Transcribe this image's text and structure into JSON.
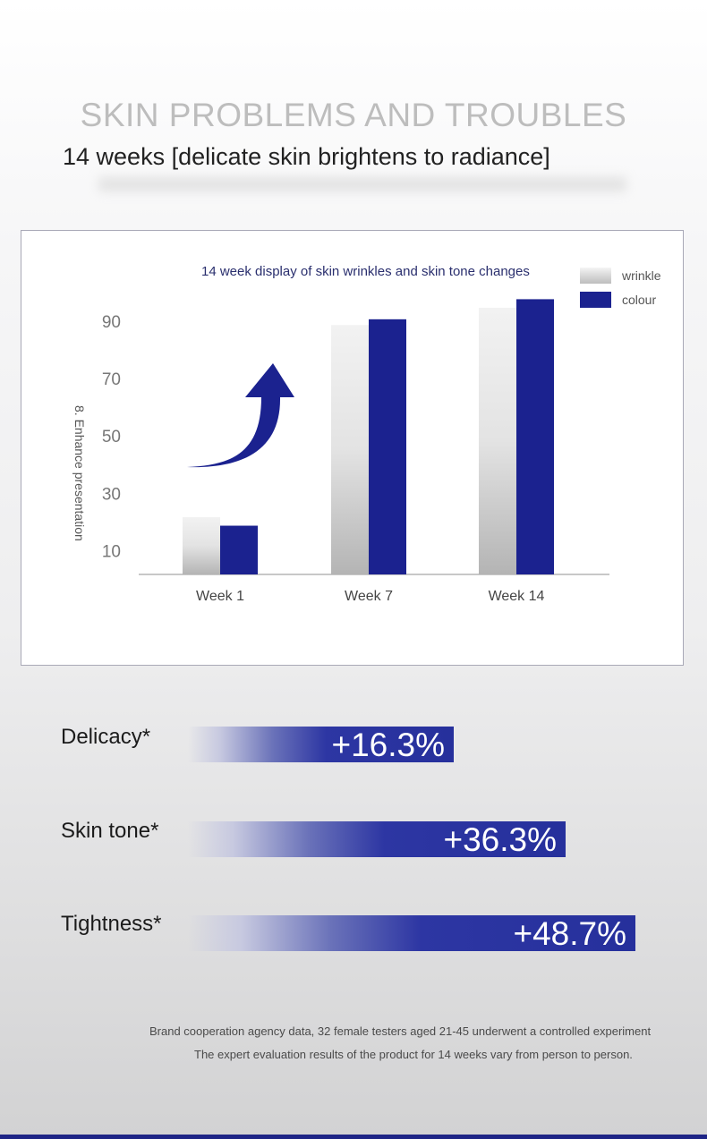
{
  "header": {
    "title": "SKIN PROBLEMS AND TROUBLES",
    "subtitle": "14 weeks [delicate skin brightens to radiance]"
  },
  "chart_data": {
    "type": "bar",
    "title": "14 week display of skin wrinkles and skin tone changes",
    "ylabel": "8. Enhance presentation",
    "xlabel": "",
    "categories": [
      "Week 1",
      "Week 7",
      "Week 14"
    ],
    "series": [
      {
        "name": "wrinkle",
        "values": [
          22,
          89,
          95
        ],
        "color": "#cfcfcf"
      },
      {
        "name": "colour",
        "values": [
          19,
          91,
          98
        ],
        "color": "#1b228f"
      }
    ],
    "yticks": [
      10,
      30,
      50,
      70,
      90
    ],
    "ylim": [
      2,
      100
    ],
    "grid": false,
    "legend": "top-right",
    "annotation": "upward-arrow"
  },
  "stats": [
    {
      "label": "Delicacy*",
      "value": "+16.3%",
      "percent": 16.3
    },
    {
      "label": "Skin tone*",
      "value": "+36.3%",
      "percent": 36.3
    },
    {
      "label": "Tightness*",
      "value": "+48.7%",
      "percent": 48.7
    }
  ],
  "notes": {
    "line1": "Brand cooperation agency data, 32 female testers aged 21-45 underwent a controlled experiment",
    "line2": "The expert evaluation results of the product for 14 weeks vary from person to person."
  },
  "colors": {
    "accent": "#1b228f",
    "heading": "#bdbdbd"
  }
}
